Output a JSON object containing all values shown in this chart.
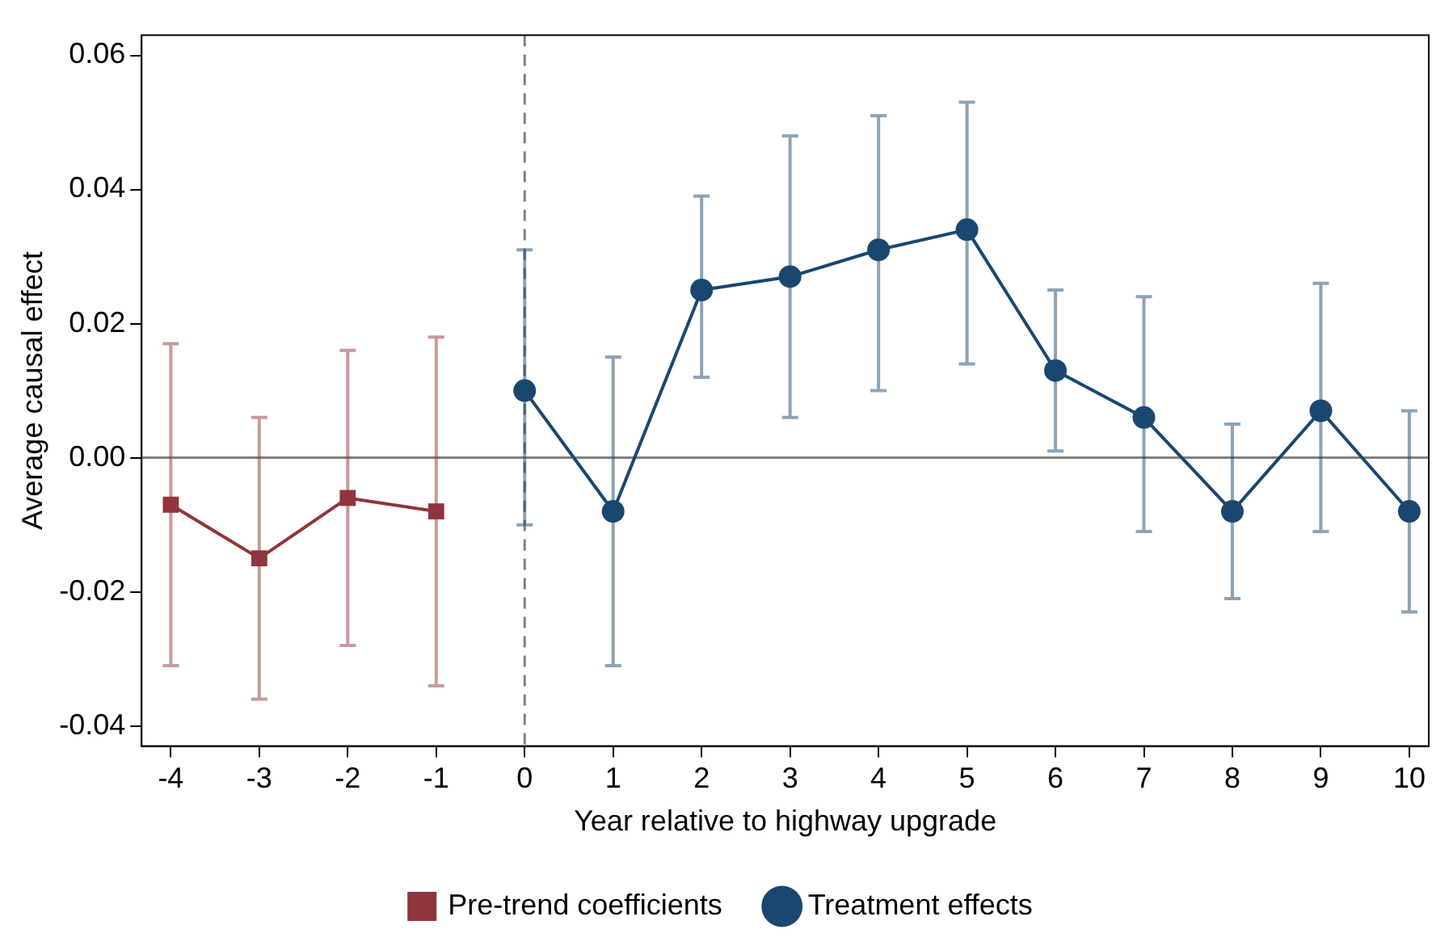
{
  "chart_data": {
    "type": "line",
    "xlabel": "Year relative to highway upgrade",
    "ylabel": "Average causal effect",
    "xlim": [
      -4.33,
      10.22
    ],
    "xticks": [
      -4,
      -3,
      -2,
      -1,
      0,
      1,
      2,
      3,
      4,
      5,
      6,
      7,
      8,
      9,
      10
    ],
    "ylim": [
      -0.043,
      0.063
    ],
    "yticks": [
      {
        "value": -0.04,
        "label": "-0.04"
      },
      {
        "value": -0.02,
        "label": "-0.02"
      },
      {
        "value": 0,
        "label": "0.00"
      },
      {
        "value": 0.02,
        "label": "0.02"
      },
      {
        "value": 0.04,
        "label": "0.04"
      },
      {
        "value": 0.06,
        "label": "0.06"
      }
    ],
    "grid": false,
    "legend": "bottom",
    "line_style": "solid",
    "ref_lines": [
      {
        "axis": "y",
        "value": 0,
        "color": "#808080",
        "line_style": "solid"
      },
      {
        "axis": "x",
        "value": 0,
        "color": "#808080",
        "line_style": "dashed"
      }
    ],
    "series": [
      {
        "name": "Pre-trend coefficients",
        "color": "#90353b",
        "marker": "square",
        "x": [
          -4,
          -3,
          -2,
          -1
        ],
        "values": [
          -0.007,
          -0.015,
          -0.006,
          -0.008
        ],
        "errors": [
          [
            -0.031,
            0.017
          ],
          [
            -0.036,
            0.006
          ],
          [
            -0.028,
            0.016
          ],
          [
            -0.034,
            0.018
          ]
        ]
      },
      {
        "name": "Treatment effects",
        "color": "#1a476f",
        "marker": "circle",
        "x": [
          0,
          1,
          2,
          3,
          4,
          5,
          6,
          7,
          8,
          9,
          10
        ],
        "values": [
          0.01,
          -0.008,
          0.025,
          0.027,
          0.031,
          0.034,
          0.013,
          0.006,
          -0.008,
          0.007,
          -0.008
        ],
        "errors": [
          [
            -0.01,
            0.031
          ],
          [
            -0.031,
            0.015
          ],
          [
            0.012,
            0.039
          ],
          [
            0.006,
            0.048
          ],
          [
            0.01,
            0.051
          ],
          [
            0.014,
            0.053
          ],
          [
            0.001,
            0.025
          ],
          [
            -0.011,
            0.024
          ],
          [
            -0.021,
            0.005
          ],
          [
            -0.011,
            0.026
          ],
          [
            -0.023,
            0.007
          ]
        ]
      }
    ]
  }
}
